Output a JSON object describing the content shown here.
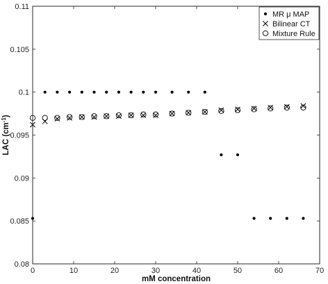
{
  "chart_data": {
    "type": "scatter",
    "xlabel": "mM concentration",
    "ylabel": "LAC (cm",
    "ylabel_sup": "-1",
    "ylabel_close": ")",
    "xlim": [
      0,
      70
    ],
    "ylim": [
      0.08,
      0.11
    ],
    "x_ticks": [
      0,
      10,
      20,
      30,
      40,
      50,
      60,
      70
    ],
    "y_ticks": [
      0.08,
      0.085,
      0.09,
      0.095,
      0.1,
      0.105,
      0.11
    ],
    "x_tick_labels": [
      "0",
      "10",
      "20",
      "30",
      "40",
      "50",
      "60",
      "70"
    ],
    "y_tick_labels": [
      "0.08",
      "0.085",
      "0.09",
      "0.095",
      "0.1",
      "0.105",
      "0.11"
    ],
    "grid": false,
    "legend_position": "top-right",
    "series": [
      {
        "name": "MR μ MAP",
        "marker": "dot",
        "x": [
          0,
          3,
          6,
          9,
          12,
          15,
          18,
          21,
          24,
          27,
          30,
          34,
          38,
          42,
          46,
          50,
          54,
          58,
          62,
          66
        ],
        "y": [
          0.0853,
          0.1,
          0.1,
          0.1,
          0.1,
          0.1,
          0.1,
          0.1,
          0.1,
          0.1,
          0.1,
          0.1,
          0.1,
          0.1,
          0.0927,
          0.0927,
          0.0853,
          0.0853,
          0.0853,
          0.0853
        ]
      },
      {
        "name": "Bilinear CT",
        "marker": "x",
        "x": [
          0,
          3,
          6,
          9,
          12,
          15,
          18,
          21,
          24,
          27,
          30,
          34,
          38,
          42,
          46,
          50,
          54,
          58,
          62,
          66
        ],
        "y": [
          0.0962,
          0.0966,
          0.0969,
          0.097,
          0.0971,
          0.0971,
          0.0972,
          0.0972,
          0.0973,
          0.0973,
          0.0973,
          0.0975,
          0.0976,
          0.0977,
          0.0979,
          0.098,
          0.0981,
          0.0982,
          0.0983,
          0.0984
        ]
      },
      {
        "name": "Mixture Rule",
        "marker": "circle",
        "x": [
          0,
          3,
          6,
          9,
          12,
          15,
          18,
          21,
          24,
          27,
          30,
          34,
          38,
          42,
          46,
          50,
          54,
          58,
          62,
          66
        ],
        "y": [
          0.097,
          0.097,
          0.097,
          0.0971,
          0.0971,
          0.0972,
          0.0972,
          0.0973,
          0.0973,
          0.0974,
          0.0974,
          0.0975,
          0.0976,
          0.0977,
          0.0978,
          0.0979,
          0.098,
          0.0981,
          0.0982,
          0.0982
        ]
      }
    ]
  }
}
